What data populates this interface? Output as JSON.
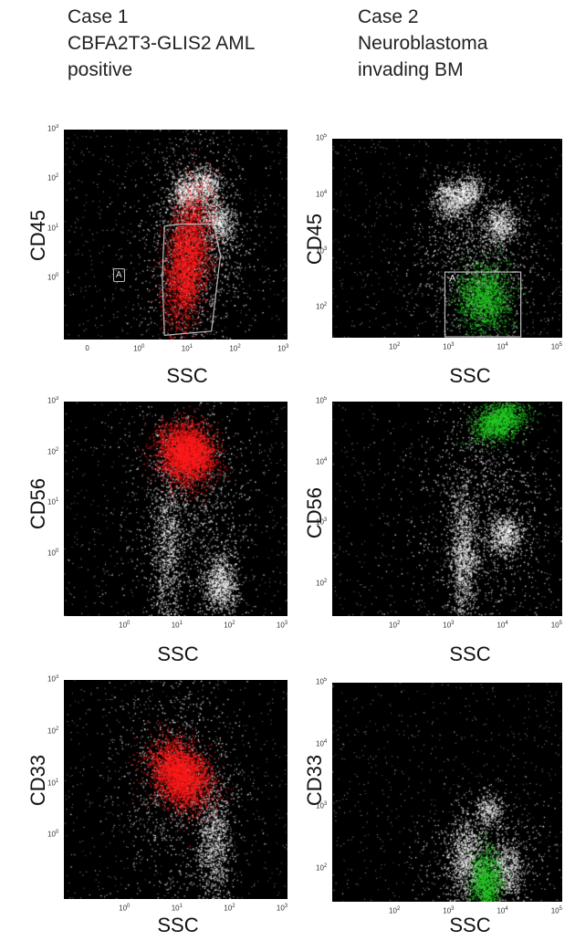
{
  "headers": {
    "case1": [
      "Case 1",
      "CBFA2T3-GLIS2 AML",
      "positive"
    ],
    "case2": [
      "Case 2",
      "Neuroblastoma",
      "invading BM"
    ]
  },
  "colors": {
    "background": "#000000",
    "other_events": "#ffffff",
    "case1_population": "#ff1a1a",
    "case2_population": "#22cc22",
    "gate_line": "#bbbbbb"
  },
  "chart_data": [
    {
      "type": "scatter",
      "panel": "case1-cd45",
      "xlabel": "SSC",
      "ylabel": "CD45",
      "xticks": [
        "0",
        "10^0",
        "10^1",
        "10^2",
        "10^3"
      ],
      "yticks": [
        "10^0",
        "10^1",
        "10^2",
        "10^3"
      ],
      "highlight_color": "#ff1a1a",
      "gate": {
        "label": "A",
        "shape": "polygon"
      },
      "x_scale": "log",
      "y_scale": "log",
      "description_clusters": [
        {
          "color": "white",
          "x_log": 0.65,
          "y_log": 2.05
        },
        {
          "color": "white",
          "x_log": 1.15,
          "y_log": 2.15
        },
        {
          "color": "white",
          "x_log": 1.45,
          "y_log": 1.55
        },
        {
          "color": "red",
          "x_log": 0.95,
          "y_log": 0.1
        }
      ]
    },
    {
      "type": "scatter",
      "panel": "case2-cd45",
      "xlabel": "SSC",
      "ylabel": "CD45",
      "xticks": [
        "10^2",
        "10^3",
        "10^4",
        "10^5"
      ],
      "yticks": [
        "10^2",
        "10^3",
        "10^4",
        "10^5"
      ],
      "highlight_color": "#22cc22",
      "gate": {
        "label": "A",
        "shape": "rectangle"
      },
      "x_scale": "log",
      "y_scale": "log"
    },
    {
      "type": "scatter",
      "panel": "case1-cd56",
      "xlabel": "SSC",
      "ylabel": "CD56",
      "xticks": [
        "10^0",
        "10^1",
        "10^2",
        "10^3"
      ],
      "yticks": [
        "10^0",
        "10^1",
        "10^2",
        "10^3"
      ],
      "highlight_color": "#ff1a1a",
      "x_scale": "log",
      "y_scale": "log"
    },
    {
      "type": "scatter",
      "panel": "case2-cd56",
      "xlabel": "SSC",
      "ylabel": "CD56",
      "xticks": [
        "10^2",
        "10^3",
        "10^4",
        "10^5"
      ],
      "yticks": [
        "10^2",
        "10^3",
        "10^4",
        "10^5"
      ],
      "highlight_color": "#22cc22",
      "x_scale": "log",
      "y_scale": "log"
    },
    {
      "type": "scatter",
      "panel": "case1-cd33",
      "xlabel": "SSC",
      "ylabel": "CD33",
      "xticks": [
        "10^0",
        "10^1",
        "10^2",
        "10^3"
      ],
      "yticks": [
        "10^0",
        "10^1",
        "10^2",
        "10^3"
      ],
      "highlight_color": "#ff1a1a",
      "x_scale": "log",
      "y_scale": "log"
    },
    {
      "type": "scatter",
      "panel": "case2-cd33",
      "xlabel": "SSC",
      "ylabel": "CD33",
      "xticks": [
        "10^2",
        "10^3",
        "10^4",
        "10^5"
      ],
      "yticks": [
        "10^2",
        "10^3",
        "10^4",
        "10^5"
      ],
      "highlight_color": "#22cc22",
      "x_scale": "log",
      "y_scale": "log"
    }
  ]
}
